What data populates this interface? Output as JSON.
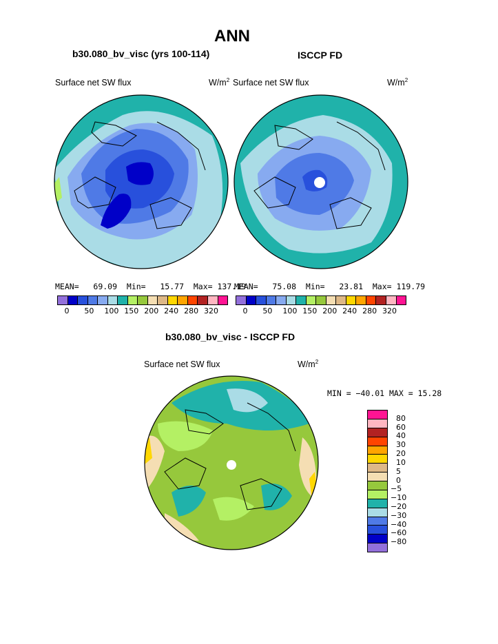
{
  "title": "ANN",
  "panels": [
    {
      "header": "b30.080_bv_visc (yrs 100-114)",
      "field": "Surface net SW flux",
      "units_base": "W/m",
      "units_exp": "2",
      "stats": {
        "mean_label": "MEAN=",
        "mean": "69.09",
        "min_label": "Min=",
        "min": "15.77",
        "max_label": "Max=",
        "max": "137.19"
      }
    },
    {
      "header": "ISCCP FD",
      "field": "Surface net SW flux",
      "units_base": "W/m",
      "units_exp": "2",
      "stats": {
        "mean_label": "MEAN=",
        "mean": "75.08",
        "min_label": "Min=",
        "min": "23.81",
        "max_label": "Max=",
        "max": "119.79"
      }
    }
  ],
  "diff": {
    "header": "b30.080_bv_visc - ISCCP FD",
    "field": "Surface net SW flux",
    "units_base": "W/m",
    "units_exp": "2",
    "minmax": "MIN = −40.01 MAX =  15.28"
  },
  "colorbar_abs": {
    "colors": [
      "#9370db",
      "#0000c8",
      "#2850dc",
      "#4f7ae6",
      "#87aaf0",
      "#aadce6",
      "#20b2aa",
      "#b4f064",
      "#96c83c",
      "#f5deb3",
      "#deb887",
      "#ffd700",
      "#ffa500",
      "#ff4500",
      "#b22222",
      "#ffb6c1",
      "#ff1493"
    ],
    "labels": [
      "0",
      "50",
      "100",
      "150",
      "200",
      "240",
      "280",
      "320"
    ]
  },
  "colorbar_diff": {
    "colors": [
      "#ff1493",
      "#ffb6c1",
      "#b22222",
      "#ff4500",
      "#ffa500",
      "#ffd700",
      "#deb887",
      "#f5deb3",
      "#96c83c",
      "#b4f064",
      "#20b2aa",
      "#aadce6",
      "#4f7ae6",
      "#2850dc",
      "#0000c8",
      "#9370db"
    ],
    "labels": [
      "80",
      "60",
      "40",
      "30",
      "20",
      "10",
      "5",
      "0",
      "−5",
      "−10",
      "−20",
      "−30",
      "−40",
      "−60",
      "−80"
    ]
  }
}
